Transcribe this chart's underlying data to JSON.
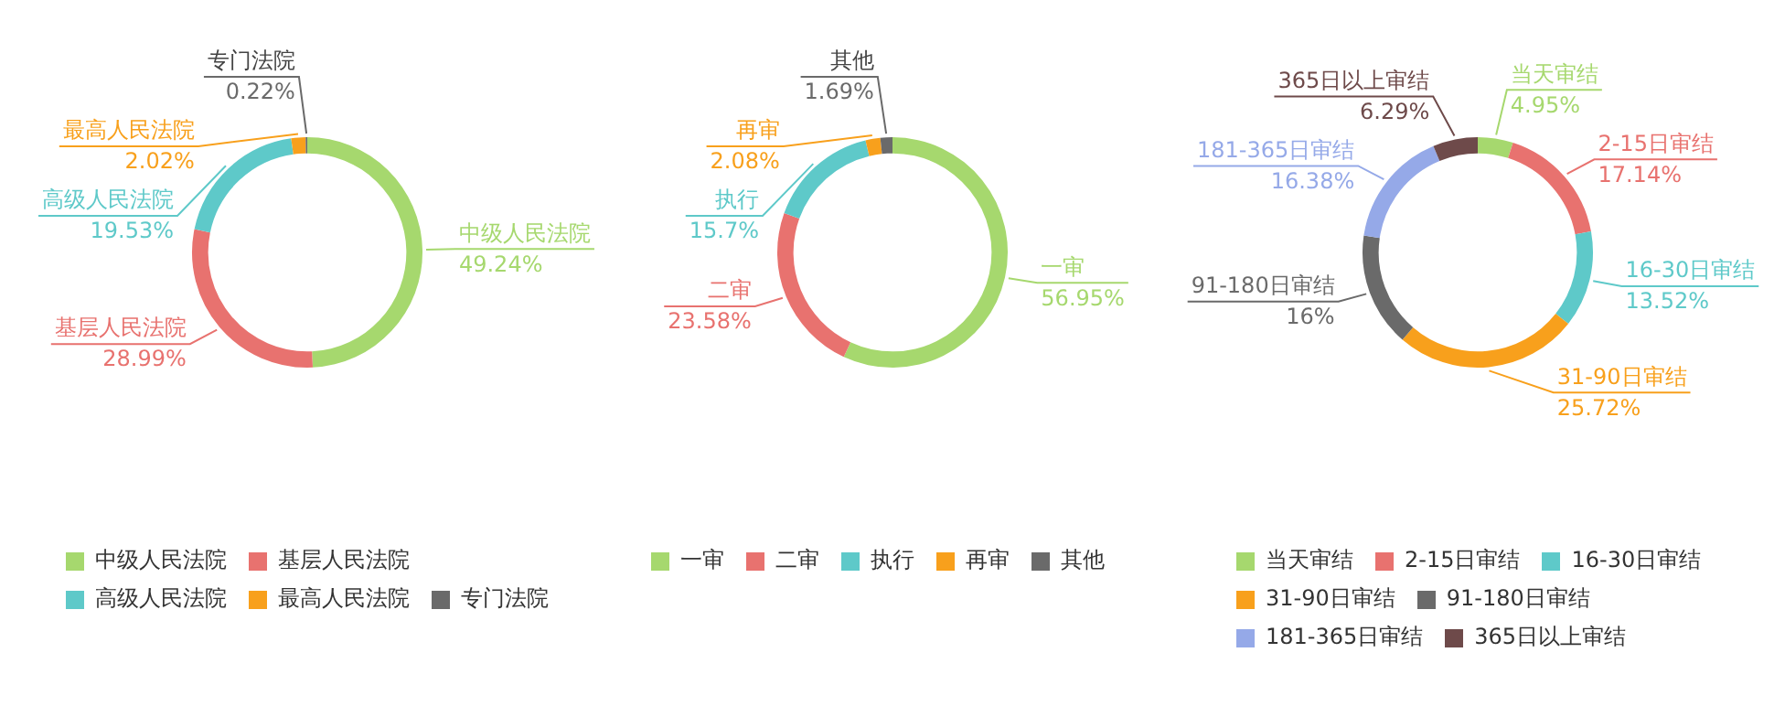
{
  "chart_data": [
    {
      "type": "donut",
      "categories": [
        "中级人民法院",
        "基层人民法院",
        "高级人民法院",
        "最高人民法院",
        "专门法院"
      ],
      "values": [
        49.24,
        28.99,
        19.53,
        2.02,
        0.22
      ],
      "colors": [
        "#a6d86e",
        "#e8726f",
        "#5ec9c9",
        "#f8a01c",
        "#6a6a6a"
      ],
      "value_labels": [
        "49.24%",
        "28.99%",
        "19.53%",
        "2.02%",
        "0.22%"
      ],
      "legend": "bottom"
    },
    {
      "type": "donut",
      "categories": [
        "一审",
        "二审",
        "执行",
        "再审",
        "其他"
      ],
      "values": [
        56.95,
        23.58,
        15.7,
        2.08,
        1.69
      ],
      "colors": [
        "#a6d86e",
        "#e8726f",
        "#5ec9c9",
        "#f8a01c",
        "#6a6a6a"
      ],
      "value_labels": [
        "56.95%",
        "23.58%",
        "15.7%",
        "2.08%",
        "1.69%"
      ],
      "legend": "bottom"
    },
    {
      "type": "donut",
      "categories": [
        "当天审结",
        "2-15日审结",
        "16-30日审结",
        "31-90日审结",
        "91-180日审结",
        "181-365日审结",
        "365日以上审结"
      ],
      "values": [
        4.95,
        17.14,
        13.52,
        25.72,
        16,
        16.38,
        6.29
      ],
      "colors": [
        "#a6d86e",
        "#e8726f",
        "#5ec9c9",
        "#f8a01c",
        "#6a6a6a",
        "#95a9e8",
        "#6e4a4a"
      ],
      "value_labels": [
        "4.95%",
        "17.14%",
        "13.52%",
        "25.72%",
        "16%",
        "16.38%",
        "6.29%"
      ],
      "legend": "bottom"
    }
  ]
}
